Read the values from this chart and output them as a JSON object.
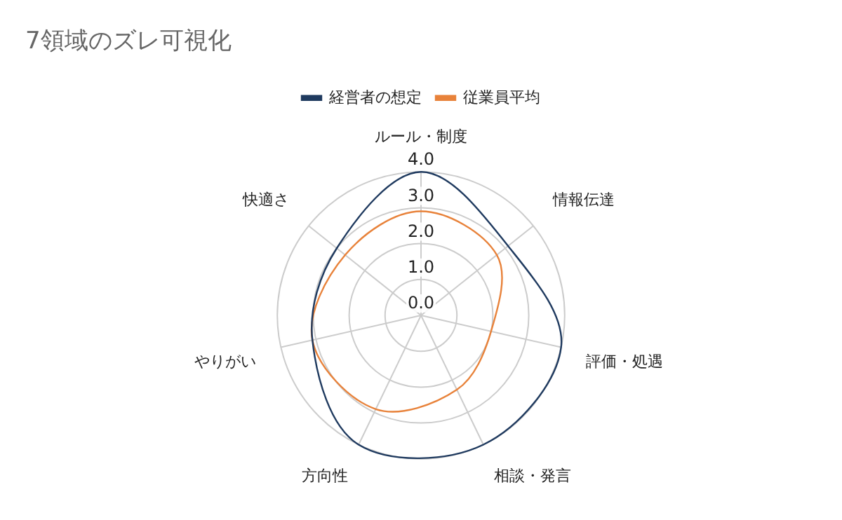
{
  "chart_data": {
    "type": "radar",
    "title": "7領域のズレ可視化",
    "categories": [
      "ルール・制度",
      "情報伝達",
      "評価・処遇",
      "相談・発言",
      "方向性",
      "やりがい",
      "快適さ"
    ],
    "series": [
      {
        "name": "経営者の想定",
        "color": "#1f3a5f",
        "values": [
          4.0,
          3.1,
          4.0,
          4.0,
          4.0,
          3.1,
          3.0
        ]
      },
      {
        "name": "従業員平均",
        "color": "#e8823a",
        "values": [
          2.9,
          2.7,
          2.0,
          2.3,
          2.9,
          3.1,
          2.7
        ]
      }
    ],
    "ylim": [
      0,
      4
    ],
    "yticks": [
      {
        "value": 0,
        "label": "0.0"
      },
      {
        "value": 1,
        "label": "1.0"
      },
      {
        "value": 2,
        "label": "2.0"
      },
      {
        "value": 3,
        "label": "3.0"
      },
      {
        "value": 4,
        "label": "4.0"
      }
    ],
    "grid": true,
    "legend": "top"
  }
}
